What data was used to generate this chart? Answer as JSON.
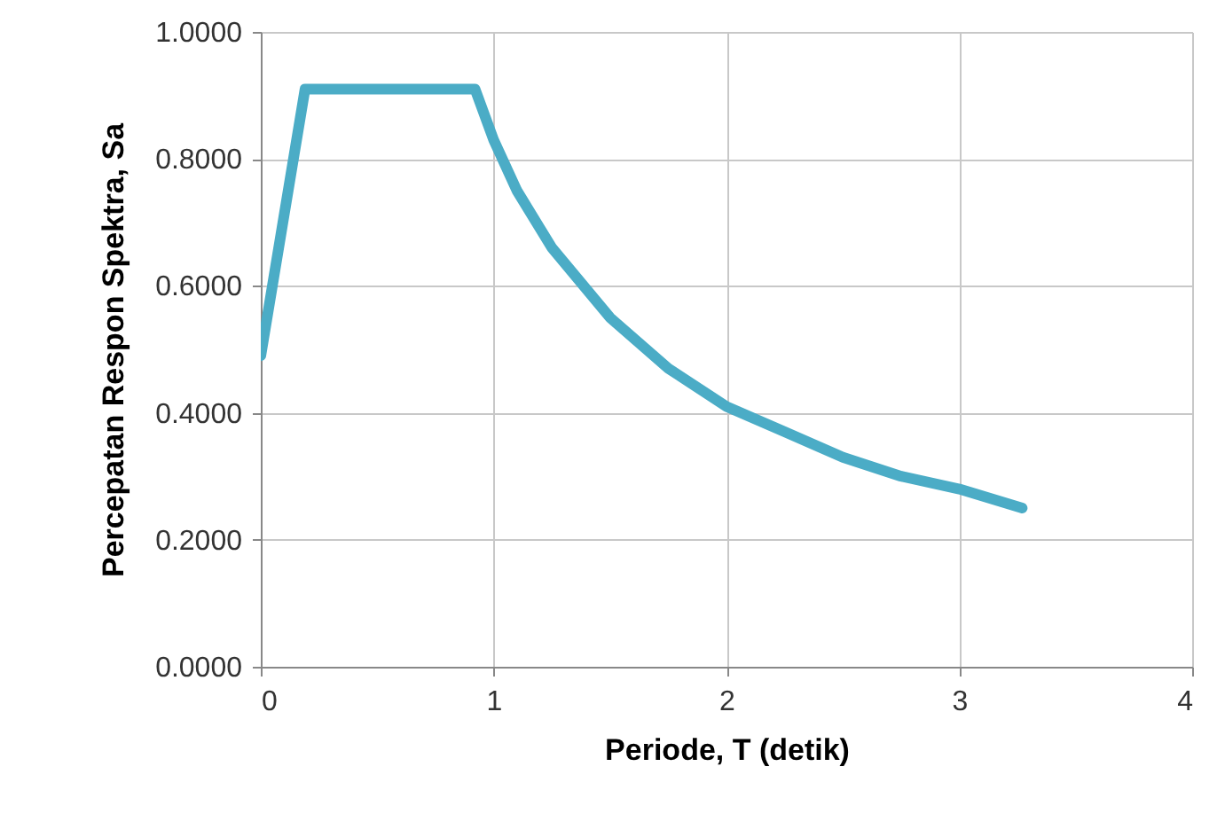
{
  "chart_data": {
    "type": "line",
    "xlabel": "Periode, T (detik)",
    "ylabel": "Percepatan Respon Spektra, Sa",
    "x": [
      0,
      0.19,
      0.92,
      1,
      1.1,
      1.25,
      1.5,
      1.75,
      2,
      2.25,
      2.5,
      2.75,
      3,
      3.27
    ],
    "series": [
      {
        "color": "#4bacc6",
        "values": [
          0.49,
          0.91,
          0.91,
          0.83,
          0.75,
          0.66,
          0.55,
          0.47,
          0.41,
          0.37,
          0.33,
          0.3,
          0.28,
          0.25
        ]
      }
    ],
    "xlim": [
      0,
      4
    ],
    "xticks": [
      0,
      1,
      2,
      3,
      4
    ],
    "ylim": [
      0,
      1
    ],
    "yticks": [
      {
        "value": 0,
        "label": "0.0000"
      },
      {
        "value": 0.2,
        "label": "0.2000"
      },
      {
        "value": 0.4,
        "label": "0.4000"
      },
      {
        "value": 0.6,
        "label": "0.6000"
      },
      {
        "value": 0.8,
        "label": "0.8000"
      },
      {
        "value": 1,
        "label": "1.0000"
      }
    ],
    "grid": true,
    "marker": "none",
    "line_style": "solid"
  }
}
